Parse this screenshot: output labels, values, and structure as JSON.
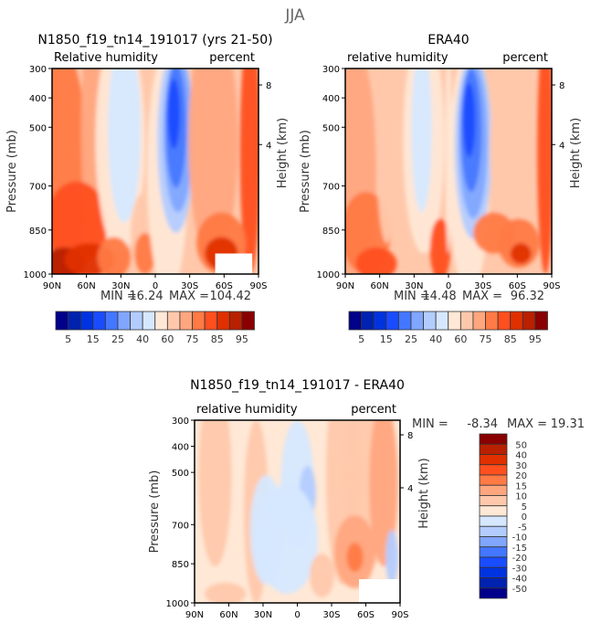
{
  "chart_data": {
    "type": "heatmap",
    "title": "JJA",
    "panels": [
      {
        "title": "N1850_f19_tn14_191017 (yrs 21-50)",
        "left_label": "Relative humidity",
        "right_label": "percent",
        "ylabel": "Pressure (mb)",
        "y2label": "Height (km)",
        "x_ticks": [
          "90N",
          "60N",
          "30N",
          "0",
          "30S",
          "60S",
          "90S"
        ],
        "y_ticks": [
          300,
          400,
          500,
          700,
          850,
          1000
        ],
        "y2_ticks": [
          8,
          4
        ],
        "ylim": [
          1000,
          300
        ],
        "min_label": "MIN =",
        "min_value": "16.24",
        "max_label": "MAX =",
        "max_value": "104.42"
      },
      {
        "title": "ERA40",
        "left_label": "relative humidity",
        "right_label": "percent",
        "ylabel": "Pressure (mb)",
        "y2label": "Height (km)",
        "x_ticks": [
          "90N",
          "60N",
          "30N",
          "0",
          "30S",
          "60S",
          "90S"
        ],
        "y_ticks": [
          300,
          400,
          500,
          700,
          850,
          1000
        ],
        "y2_ticks": [
          8,
          4
        ],
        "ylim": [
          1000,
          300
        ],
        "min_label": "MIN =",
        "min_value": "14.48",
        "max_label": "MAX =",
        "max_value": "96.32"
      },
      {
        "title": "N1850_f19_tn14_191017 - ERA40",
        "left_label": "relative humidity",
        "right_label": "percent",
        "ylabel": "Pressure (mb)",
        "y2label": "Height (km)",
        "x_ticks": [
          "90N",
          "60N",
          "30N",
          "0",
          "30S",
          "60S",
          "90S"
        ],
        "y_ticks": [
          300,
          400,
          500,
          700,
          850,
          1000
        ],
        "y2_ticks": [
          8,
          4
        ],
        "ylim": [
          1000,
          300
        ],
        "min_label": "MIN =",
        "min_value": "-8.34",
        "max_label": "MAX =",
        "max_value": "19.31"
      }
    ],
    "colorbar_abs": {
      "labels": [
        "5",
        "15",
        "25",
        "40",
        "60",
        "75",
        "85",
        "95"
      ],
      "colors": [
        "#00008a",
        "#0022b0",
        "#0033e0",
        "#1a4cff",
        "#4477ff",
        "#80a6ff",
        "#b3ccff",
        "#d6e8ff",
        "#ffe8d6",
        "#ffc8ab",
        "#ffa67f",
        "#ff7a45",
        "#ff4f1f",
        "#e03000",
        "#b82000",
        "#8a0000"
      ]
    },
    "colorbar_diff": {
      "labels": [
        "50",
        "40",
        "30",
        "20",
        "15",
        "10",
        "5",
        "0",
        "-5",
        "-10",
        "-15",
        "-20",
        "-30",
        "-40",
        "-50"
      ],
      "colors": [
        "#8a0000",
        "#b82000",
        "#e03000",
        "#ff4f1f",
        "#ff7a45",
        "#ffa67f",
        "#ffc8ab",
        "#ffe8d6",
        "#d6e8ff",
        "#b3ccff",
        "#80a6ff",
        "#4477ff",
        "#1a4cff",
        "#0033e0",
        "#0022b0",
        "#00008a"
      ]
    }
  }
}
